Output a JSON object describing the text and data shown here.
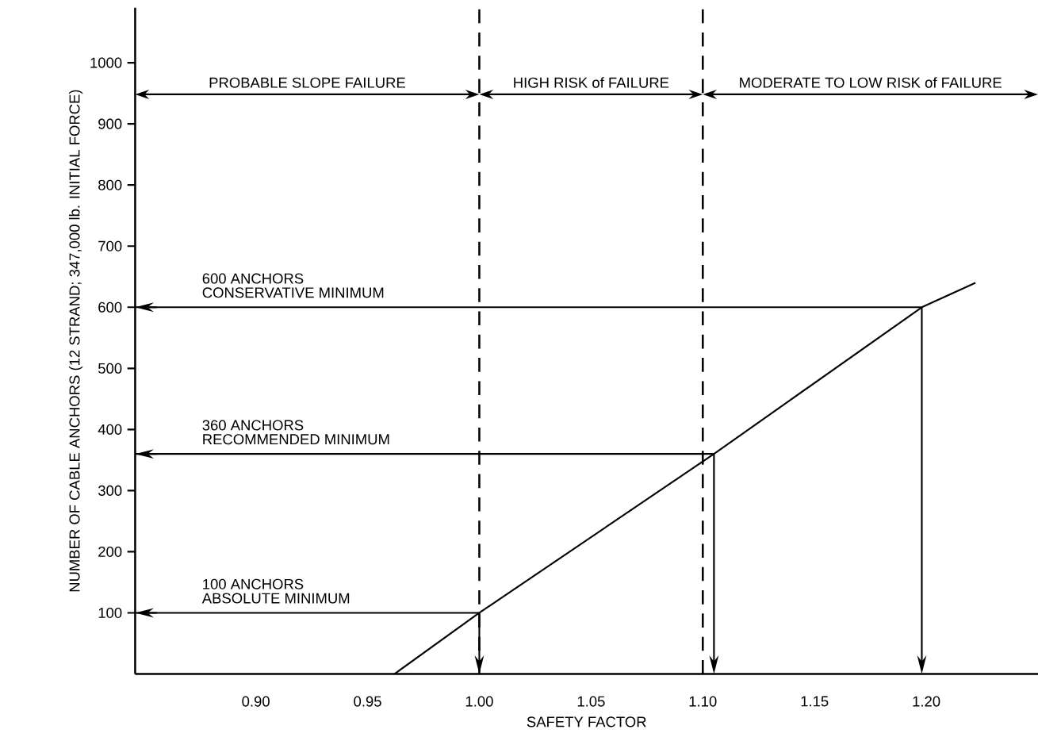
{
  "chart_data": {
    "type": "line",
    "xlabel": "SAFETY FACTOR",
    "ylabel": "NUMBER OF CABLE ANCHORS (12 STRAND; 347,000 lb. INITIAL FORCE)",
    "x": [
      0.962,
      1.0,
      1.105,
      1.198,
      1.222
    ],
    "values": [
      0,
      100,
      360,
      600,
      640
    ],
    "color": "#000000",
    "xlim": [
      0.846,
      1.25
    ],
    "ylim": [
      0,
      1090
    ],
    "xticks": [
      {
        "value": 0.9,
        "label": "0.90"
      },
      {
        "value": 0.95,
        "label": "0.95"
      },
      {
        "value": 1.0,
        "label": "1.00"
      },
      {
        "value": 1.05,
        "label": "1.05"
      },
      {
        "value": 1.1,
        "label": "1.10"
      },
      {
        "value": 1.15,
        "label": "1.15"
      },
      {
        "value": 1.2,
        "label": "1.20"
      }
    ],
    "yticks": [
      100,
      200,
      300,
      400,
      500,
      600,
      700,
      800,
      900,
      1000
    ],
    "ref_lines": [
      {
        "axis": "x",
        "value": 1.0,
        "line_style": "dashed",
        "color": "#000000"
      },
      {
        "axis": "x",
        "value": 1.1,
        "line_style": "dashed",
        "color": "#000000"
      },
      {
        "axis": "y",
        "value": 600,
        "label": "600 ANCHORS",
        "line_style": "solid",
        "color": "#000000"
      },
      {
        "axis": "y",
        "value": 360,
        "label": "360 ANCHORS",
        "line_style": "solid",
        "color": "#000000"
      },
      {
        "axis": "y",
        "value": 100,
        "label": "100 ANCHORS",
        "line_style": "solid",
        "color": "#000000"
      }
    ],
    "annotations": [
      "PROBABLE SLOPE FAILURE",
      "HIGH RISK of FAILURE",
      "MODERATE TO LOW RISK of FAILURE",
      "CONSERVATIVE MINIMUM",
      "RECOMMENDED MINIMUM",
      "ABSOLUTE MINIMUM"
    ]
  }
}
